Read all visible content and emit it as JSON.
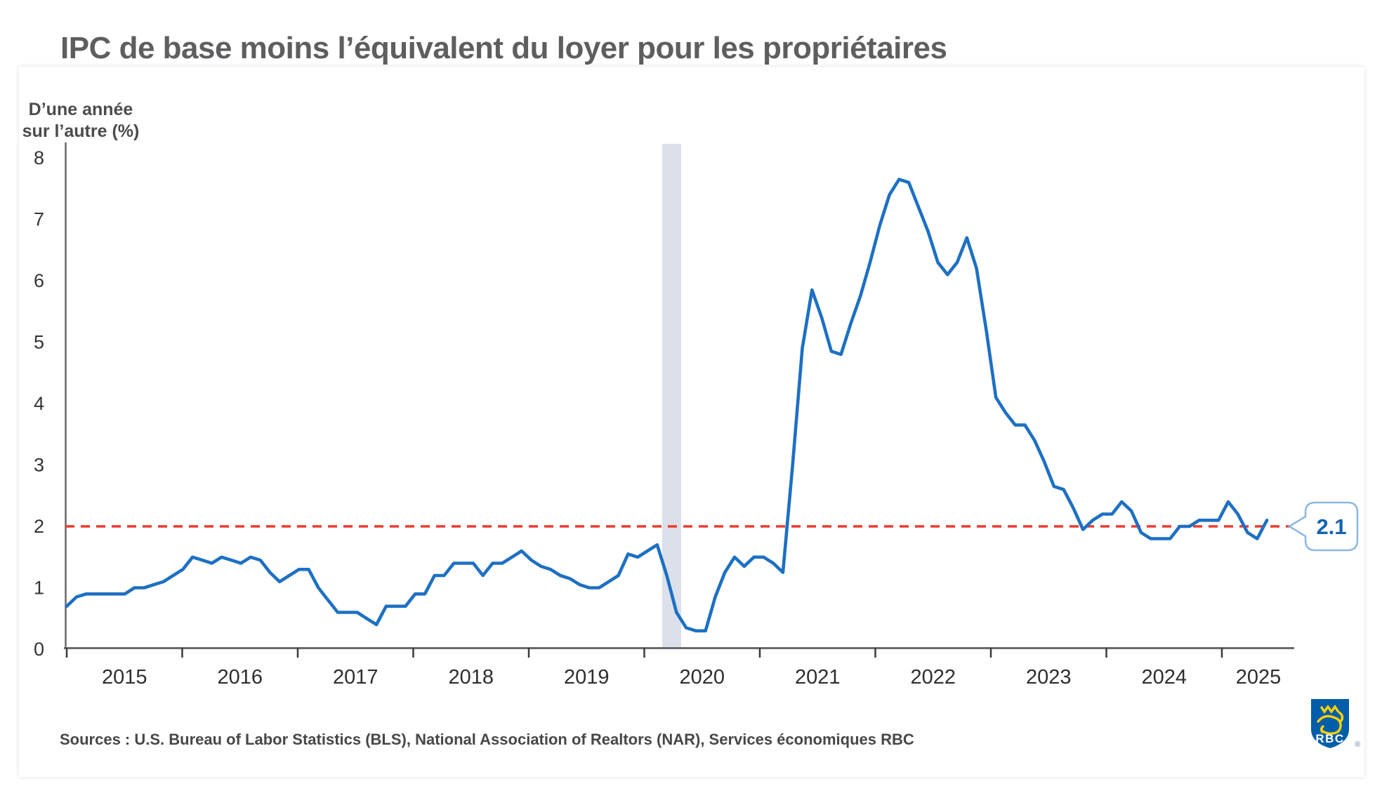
{
  "header": {
    "title": "IPC de base moins l’équivalent du loyer pour les propriétaires"
  },
  "chart": {
    "y_axis_label_line1": "D’une année",
    "y_axis_label_line2": "sur l’autre (%)",
    "colors": {
      "series_line": "#1d70c3",
      "target_line": "#ee3a2e",
      "recession_band": "#dce0ea",
      "axis": "#6a6a6a",
      "tick_text": "#333333",
      "callout_border": "#8ab8e8",
      "callout_text": "#1563b0"
    },
    "callout_value": "2.1"
  },
  "chart_data": {
    "type": "line",
    "title": "IPC de base moins l’équivalent du loyer pour les propriétaires",
    "ylabel": "D’une année sur l’autre (%)",
    "frequency": "monthly",
    "x_start": "2015-01",
    "x_end": "2025-05",
    "x_tick_years": [
      "2015",
      "2016",
      "2017",
      "2018",
      "2019",
      "2020",
      "2021",
      "2022",
      "2023",
      "2024",
      "2025"
    ],
    "y_ticks": [
      0,
      1,
      2,
      3,
      4,
      5,
      6,
      7,
      8
    ],
    "ylim": [
      0,
      8
    ],
    "grid": false,
    "target_line_value": 2,
    "recession_band": {
      "from": "2020-02",
      "to": "2020-04"
    },
    "last_point_label": "2.1",
    "series": [
      {
        "name": "IPC de base moins l’équivalent du loyer pour les propriétaires",
        "values": [
          0.7,
          0.85,
          0.9,
          0.9,
          0.9,
          0.9,
          0.9,
          1.0,
          1.0,
          1.05,
          1.1,
          1.2,
          1.3,
          1.5,
          1.45,
          1.4,
          1.5,
          1.45,
          1.4,
          1.5,
          1.45,
          1.25,
          1.1,
          1.2,
          1.3,
          1.3,
          1.0,
          0.8,
          0.6,
          0.6,
          0.6,
          0.5,
          0.4,
          0.7,
          0.7,
          0.7,
          0.9,
          0.9,
          1.2,
          1.2,
          1.4,
          1.4,
          1.4,
          1.2,
          1.4,
          1.4,
          1.5,
          1.6,
          1.45,
          1.35,
          1.3,
          1.2,
          1.15,
          1.05,
          1.0,
          1.0,
          1.1,
          1.2,
          1.55,
          1.5,
          1.6,
          1.7,
          1.2,
          0.6,
          0.35,
          0.3,
          0.3,
          0.85,
          1.25,
          1.5,
          1.35,
          1.5,
          1.5,
          1.4,
          1.25,
          3.0,
          4.9,
          5.85,
          5.4,
          4.85,
          4.8,
          5.3,
          5.75,
          6.3,
          6.9,
          7.4,
          7.65,
          7.6,
          7.2,
          6.8,
          6.3,
          6.1,
          6.3,
          6.7,
          6.2,
          5.2,
          4.1,
          3.85,
          3.65,
          3.65,
          3.4,
          3.05,
          2.65,
          2.6,
          2.3,
          1.95,
          2.1,
          2.2,
          2.2,
          2.4,
          2.25,
          1.9,
          1.8,
          1.8,
          1.8,
          2.0,
          2.0,
          2.1,
          2.1,
          2.1,
          2.4,
          2.2,
          1.9,
          1.8,
          2.1
        ]
      }
    ]
  },
  "footer": {
    "sources": "Sources : U.S. Bureau of Labor Statistics (BLS), National Association of Realtors (NAR), Services économiques RBC",
    "logo_text": "RBC",
    "registered_mark": "®"
  }
}
